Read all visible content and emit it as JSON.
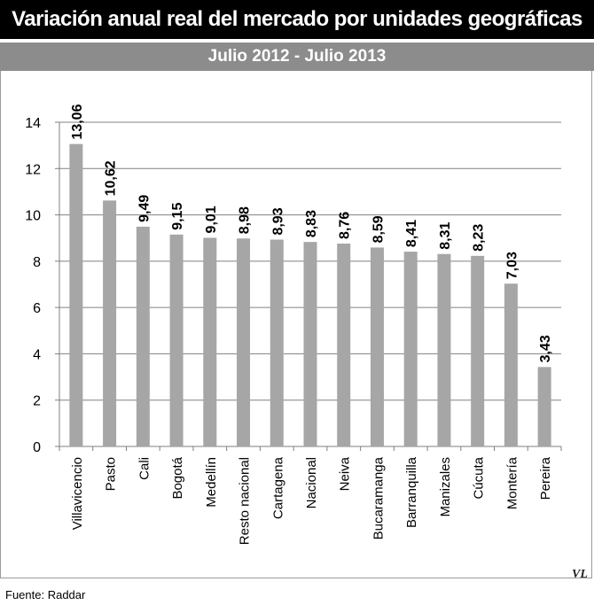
{
  "header": {
    "title": "Variación anual real del mercado por unidades geográficas",
    "subtitle": "Julio 2012 - Julio 2013"
  },
  "footer": {
    "source": "Fuente: Raddar",
    "logo_text": "VL"
  },
  "chart_data": {
    "type": "bar",
    "title": "Variación anual real del mercado por unidades geográficas",
    "subtitle": "Julio 2012 - Julio 2013",
    "categories": [
      "Villavicencio",
      "Pasto",
      "Cali",
      "Bogotá",
      "Medellín",
      "Resto nacional",
      "Cartagena",
      "Nacional",
      "Neiva",
      "Bucaramanga",
      "Barranquilla",
      "Manizales",
      "Cúcuta",
      "Montería",
      "Pereira"
    ],
    "values": [
      13.06,
      10.62,
      9.49,
      9.15,
      9.01,
      8.98,
      8.93,
      8.83,
      8.76,
      8.59,
      8.41,
      8.31,
      8.23,
      7.03,
      3.43
    ],
    "value_labels": [
      "13,06",
      "10,62",
      "9,49",
      "9,15",
      "9,01",
      "8,98",
      "8,93",
      "8,83",
      "8,76",
      "8,59",
      "8,41",
      "8,31",
      "8,23",
      "7,03",
      "3,43"
    ],
    "ylim": [
      0,
      14
    ],
    "yticks": [
      0,
      2,
      4,
      6,
      8,
      10,
      12,
      14
    ],
    "grid": true,
    "bar_color": "#a6a6a6",
    "grid_color": "#808080",
    "xlabel": "",
    "ylabel": ""
  }
}
